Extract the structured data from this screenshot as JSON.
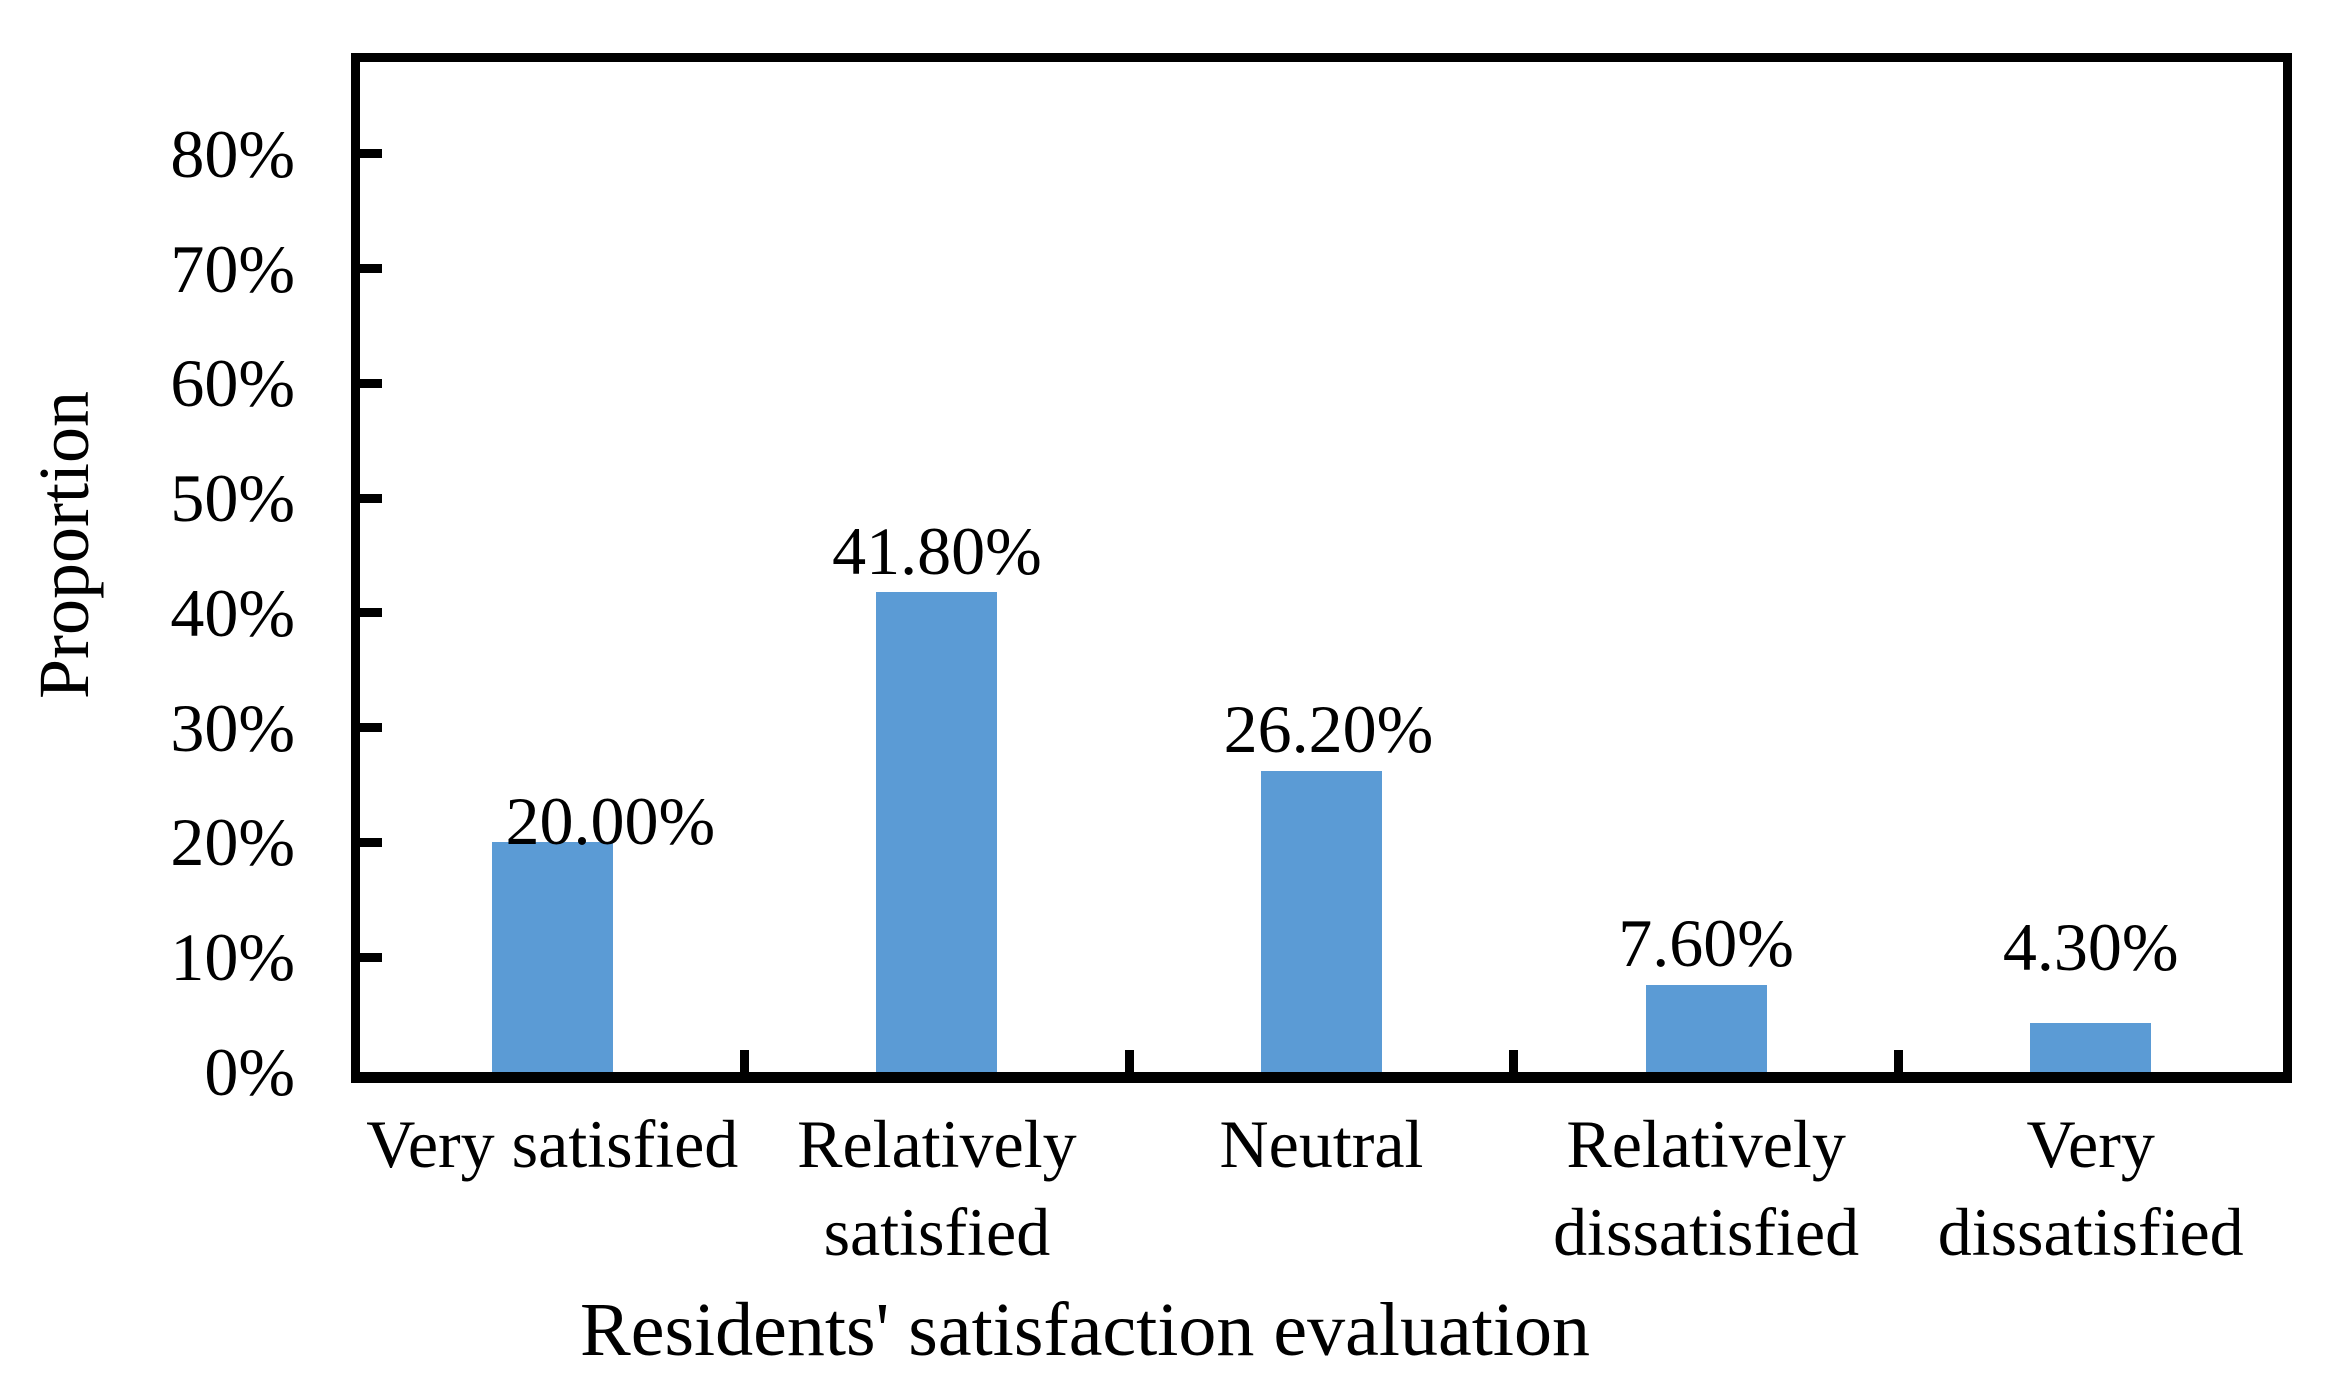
{
  "chart_data": {
    "type": "bar",
    "title": "",
    "categories": [
      "Very satisfied",
      "Relatively satisfied",
      "Neutral",
      "Relatively dissatisfied",
      "Very dissatisfied"
    ],
    "values": [
      20.0,
      41.8,
      26.2,
      7.6,
      4.3
    ],
    "data_labels": [
      "20.00%",
      "41.80%",
      "26.20%",
      "7.60%",
      "4.30%"
    ],
    "xlabel": "Residents' satisfaction evaluation",
    "ylabel": "Proportion",
    "y_tick_labels": [
      "0%",
      "10%",
      "20%",
      "30%",
      "40%",
      "50%",
      "60%",
      "70%",
      "80%"
    ],
    "y_major_unit_pct": 10,
    "ylim": [
      0,
      88
    ],
    "grid": false,
    "legend": false,
    "bar_color": "#5B9BD5",
    "axis_color": "#000000",
    "text_color": "#000000"
  }
}
